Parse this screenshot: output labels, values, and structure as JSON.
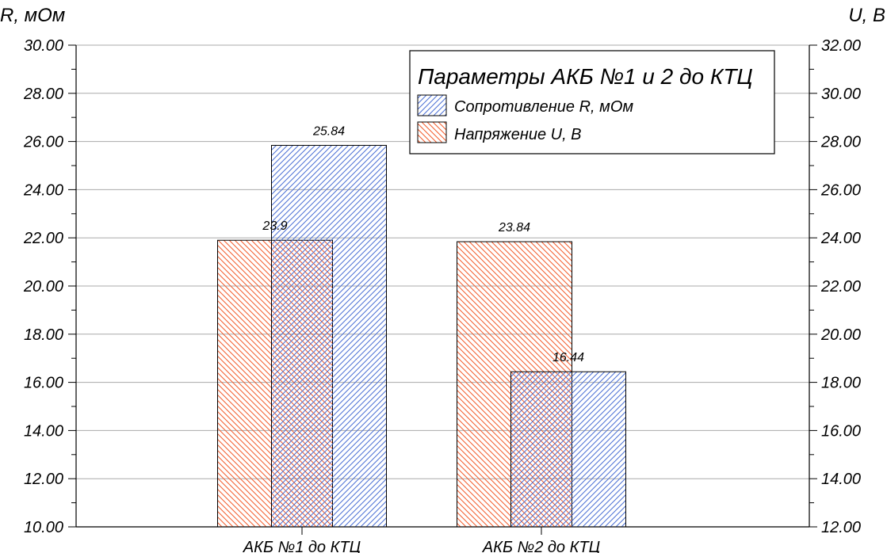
{
  "chart_data": {
    "type": "bar",
    "title": "Параметры АКБ №1 и 2 до КТЦ",
    "categories": [
      "АКБ №1 до КТЦ",
      "АКБ №2 до КТЦ"
    ],
    "left_axis": {
      "label": "R, мОм",
      "range": [
        10,
        30
      ],
      "ticks": [
        "10.00",
        "12.00",
        "14.00",
        "16.00",
        "18.00",
        "20.00",
        "22.00",
        "24.00",
        "26.00",
        "28.00",
        "30.00"
      ]
    },
    "right_axis": {
      "label": "U, В",
      "range": [
        12,
        32
      ],
      "ticks": [
        "12.00",
        "14.00",
        "16.00",
        "18.00",
        "20.00",
        "22.00",
        "24.00",
        "26.00",
        "28.00",
        "30.00",
        "32.00"
      ]
    },
    "grid": true,
    "legend_position": "top-right",
    "series": [
      {
        "name": "Сопротивление R, мОм",
        "axis": "left",
        "color": "#4a6fd4",
        "values": [
          25.84,
          16.44
        ],
        "labels": [
          "25.84",
          "16.44"
        ]
      },
      {
        "name": "Напряжение U, В",
        "axis": "right",
        "color": "#f25b2a",
        "values": [
          23.9,
          23.84
        ],
        "labels": [
          "23.9",
          "23.84"
        ]
      }
    ]
  }
}
